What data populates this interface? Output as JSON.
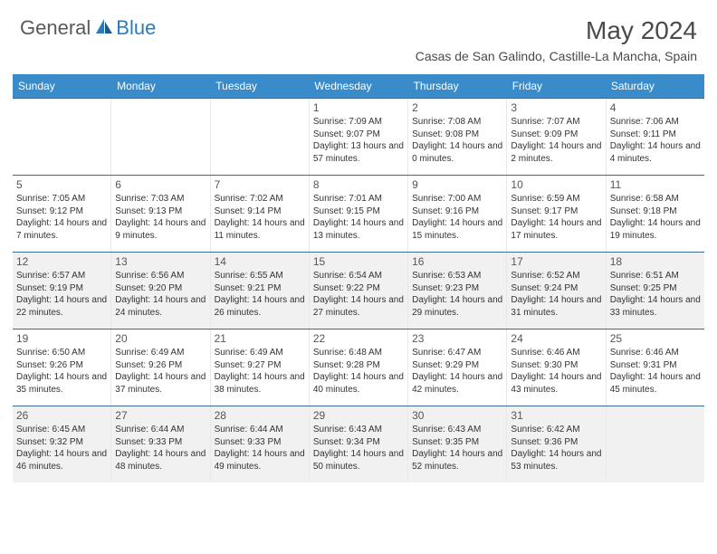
{
  "logo": {
    "general": "General",
    "blue": "Blue"
  },
  "title": "May 2024",
  "location": "Casas de San Galindo, Castille-La Mancha, Spain",
  "colors": {
    "header_bg": "#3a8bc9",
    "border": "#3a6a95",
    "shaded": "#f1f1f1",
    "text": "#333333",
    "title_text": "#4a4a4a"
  },
  "weekdays": [
    "Sunday",
    "Monday",
    "Tuesday",
    "Wednesday",
    "Thursday",
    "Friday",
    "Saturday"
  ],
  "weeks": [
    [
      {
        "day": "",
        "sunrise": "",
        "sunset": "",
        "daylight": "",
        "shaded": false
      },
      {
        "day": "",
        "sunrise": "",
        "sunset": "",
        "daylight": "",
        "shaded": false
      },
      {
        "day": "",
        "sunrise": "",
        "sunset": "",
        "daylight": "",
        "shaded": false
      },
      {
        "day": "1",
        "sunrise": "Sunrise: 7:09 AM",
        "sunset": "Sunset: 9:07 PM",
        "daylight": "Daylight: 13 hours and 57 minutes.",
        "shaded": false
      },
      {
        "day": "2",
        "sunrise": "Sunrise: 7:08 AM",
        "sunset": "Sunset: 9:08 PM",
        "daylight": "Daylight: 14 hours and 0 minutes.",
        "shaded": false
      },
      {
        "day": "3",
        "sunrise": "Sunrise: 7:07 AM",
        "sunset": "Sunset: 9:09 PM",
        "daylight": "Daylight: 14 hours and 2 minutes.",
        "shaded": false
      },
      {
        "day": "4",
        "sunrise": "Sunrise: 7:06 AM",
        "sunset": "Sunset: 9:11 PM",
        "daylight": "Daylight: 14 hours and 4 minutes.",
        "shaded": false
      }
    ],
    [
      {
        "day": "5",
        "sunrise": "Sunrise: 7:05 AM",
        "sunset": "Sunset: 9:12 PM",
        "daylight": "Daylight: 14 hours and 7 minutes.",
        "shaded": false
      },
      {
        "day": "6",
        "sunrise": "Sunrise: 7:03 AM",
        "sunset": "Sunset: 9:13 PM",
        "daylight": "Daylight: 14 hours and 9 minutes.",
        "shaded": false
      },
      {
        "day": "7",
        "sunrise": "Sunrise: 7:02 AM",
        "sunset": "Sunset: 9:14 PM",
        "daylight": "Daylight: 14 hours and 11 minutes.",
        "shaded": false
      },
      {
        "day": "8",
        "sunrise": "Sunrise: 7:01 AM",
        "sunset": "Sunset: 9:15 PM",
        "daylight": "Daylight: 14 hours and 13 minutes.",
        "shaded": false
      },
      {
        "day": "9",
        "sunrise": "Sunrise: 7:00 AM",
        "sunset": "Sunset: 9:16 PM",
        "daylight": "Daylight: 14 hours and 15 minutes.",
        "shaded": false
      },
      {
        "day": "10",
        "sunrise": "Sunrise: 6:59 AM",
        "sunset": "Sunset: 9:17 PM",
        "daylight": "Daylight: 14 hours and 17 minutes.",
        "shaded": false
      },
      {
        "day": "11",
        "sunrise": "Sunrise: 6:58 AM",
        "sunset": "Sunset: 9:18 PM",
        "daylight": "Daylight: 14 hours and 19 minutes.",
        "shaded": false
      }
    ],
    [
      {
        "day": "12",
        "sunrise": "Sunrise: 6:57 AM",
        "sunset": "Sunset: 9:19 PM",
        "daylight": "Daylight: 14 hours and 22 minutes.",
        "shaded": true
      },
      {
        "day": "13",
        "sunrise": "Sunrise: 6:56 AM",
        "sunset": "Sunset: 9:20 PM",
        "daylight": "Daylight: 14 hours and 24 minutes.",
        "shaded": true
      },
      {
        "day": "14",
        "sunrise": "Sunrise: 6:55 AM",
        "sunset": "Sunset: 9:21 PM",
        "daylight": "Daylight: 14 hours and 26 minutes.",
        "shaded": true
      },
      {
        "day": "15",
        "sunrise": "Sunrise: 6:54 AM",
        "sunset": "Sunset: 9:22 PM",
        "daylight": "Daylight: 14 hours and 27 minutes.",
        "shaded": true
      },
      {
        "day": "16",
        "sunrise": "Sunrise: 6:53 AM",
        "sunset": "Sunset: 9:23 PM",
        "daylight": "Daylight: 14 hours and 29 minutes.",
        "shaded": true
      },
      {
        "day": "17",
        "sunrise": "Sunrise: 6:52 AM",
        "sunset": "Sunset: 9:24 PM",
        "daylight": "Daylight: 14 hours and 31 minutes.",
        "shaded": true
      },
      {
        "day": "18",
        "sunrise": "Sunrise: 6:51 AM",
        "sunset": "Sunset: 9:25 PM",
        "daylight": "Daylight: 14 hours and 33 minutes.",
        "shaded": true
      }
    ],
    [
      {
        "day": "19",
        "sunrise": "Sunrise: 6:50 AM",
        "sunset": "Sunset: 9:26 PM",
        "daylight": "Daylight: 14 hours and 35 minutes.",
        "shaded": false
      },
      {
        "day": "20",
        "sunrise": "Sunrise: 6:49 AM",
        "sunset": "Sunset: 9:26 PM",
        "daylight": "Daylight: 14 hours and 37 minutes.",
        "shaded": false
      },
      {
        "day": "21",
        "sunrise": "Sunrise: 6:49 AM",
        "sunset": "Sunset: 9:27 PM",
        "daylight": "Daylight: 14 hours and 38 minutes.",
        "shaded": false
      },
      {
        "day": "22",
        "sunrise": "Sunrise: 6:48 AM",
        "sunset": "Sunset: 9:28 PM",
        "daylight": "Daylight: 14 hours and 40 minutes.",
        "shaded": false
      },
      {
        "day": "23",
        "sunrise": "Sunrise: 6:47 AM",
        "sunset": "Sunset: 9:29 PM",
        "daylight": "Daylight: 14 hours and 42 minutes.",
        "shaded": false
      },
      {
        "day": "24",
        "sunrise": "Sunrise: 6:46 AM",
        "sunset": "Sunset: 9:30 PM",
        "daylight": "Daylight: 14 hours and 43 minutes.",
        "shaded": false
      },
      {
        "day": "25",
        "sunrise": "Sunrise: 6:46 AM",
        "sunset": "Sunset: 9:31 PM",
        "daylight": "Daylight: 14 hours and 45 minutes.",
        "shaded": false
      }
    ],
    [
      {
        "day": "26",
        "sunrise": "Sunrise: 6:45 AM",
        "sunset": "Sunset: 9:32 PM",
        "daylight": "Daylight: 14 hours and 46 minutes.",
        "shaded": true
      },
      {
        "day": "27",
        "sunrise": "Sunrise: 6:44 AM",
        "sunset": "Sunset: 9:33 PM",
        "daylight": "Daylight: 14 hours and 48 minutes.",
        "shaded": true
      },
      {
        "day": "28",
        "sunrise": "Sunrise: 6:44 AM",
        "sunset": "Sunset: 9:33 PM",
        "daylight": "Daylight: 14 hours and 49 minutes.",
        "shaded": true
      },
      {
        "day": "29",
        "sunrise": "Sunrise: 6:43 AM",
        "sunset": "Sunset: 9:34 PM",
        "daylight": "Daylight: 14 hours and 50 minutes.",
        "shaded": true
      },
      {
        "day": "30",
        "sunrise": "Sunrise: 6:43 AM",
        "sunset": "Sunset: 9:35 PM",
        "daylight": "Daylight: 14 hours and 52 minutes.",
        "shaded": true
      },
      {
        "day": "31",
        "sunrise": "Sunrise: 6:42 AM",
        "sunset": "Sunset: 9:36 PM",
        "daylight": "Daylight: 14 hours and 53 minutes.",
        "shaded": true
      },
      {
        "day": "",
        "sunrise": "",
        "sunset": "",
        "daylight": "",
        "shaded": true
      }
    ]
  ]
}
